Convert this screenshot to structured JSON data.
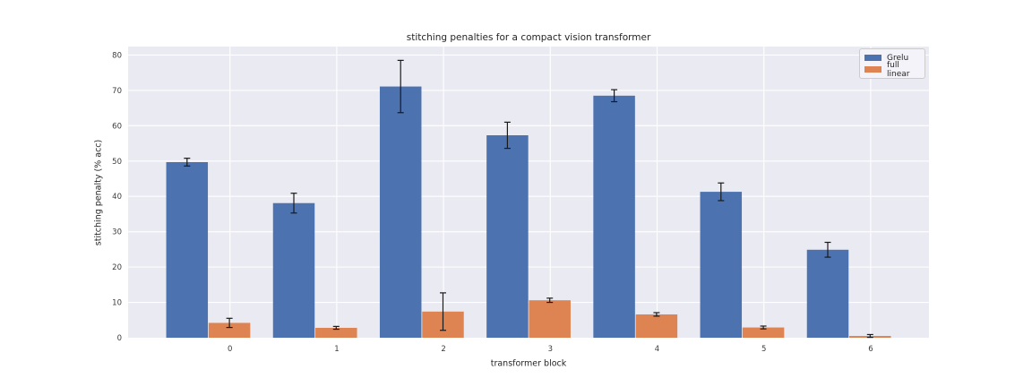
{
  "chart_data": {
    "type": "bar",
    "title": "stitching penalties for a compact vision transformer",
    "xlabel": "transformer block",
    "ylabel": "stitching penalty (% acc)",
    "categories": [
      "0",
      "1",
      "2",
      "3",
      "4",
      "5",
      "6"
    ],
    "series": [
      {
        "name": "Grelu",
        "color": "#4c72b0",
        "values": [
          49.7,
          38.1,
          71.1,
          57.3,
          68.5,
          41.3,
          24.9
        ],
        "errors": [
          1.1,
          2.8,
          7.4,
          3.7,
          1.7,
          2.5,
          2.1
        ]
      },
      {
        "name": "full linear",
        "color": "#dd8452",
        "values": [
          4.2,
          2.8,
          7.4,
          10.6,
          6.6,
          2.9,
          0.5
        ],
        "errors": [
          1.3,
          0.4,
          5.3,
          0.6,
          0.5,
          0.4,
          0.4
        ]
      }
    ],
    "ylim": [
      0,
      82.4
    ],
    "yticks": [
      0,
      10,
      20,
      30,
      40,
      50,
      60,
      70,
      80
    ],
    "grid": true,
    "legend_position": "upper right",
    "plot_bg": "#eaeaf2",
    "grid_color": "#ffffff",
    "errorbar_color": "#1a1a1a",
    "tick_color": "#3b3b3b"
  }
}
